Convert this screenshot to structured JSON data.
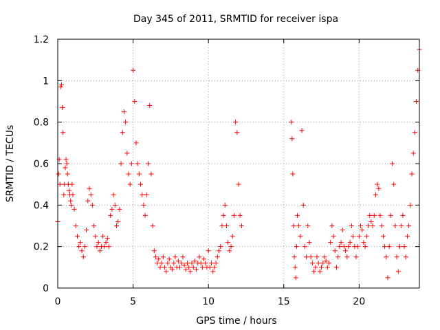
{
  "chart_data": {
    "type": "scatter",
    "title": "Day 345 of 2011, SRMTID for receiver ispa",
    "xlabel": "GPS time / hours",
    "ylabel": "SRMTID / TECUs",
    "xlim": [
      0,
      24
    ],
    "ylim": [
      0,
      1.2
    ],
    "xticks": [
      0,
      5,
      10,
      15,
      20
    ],
    "xtick_labels": [
      "0",
      "5",
      "10",
      "15",
      "20"
    ],
    "yticks": [
      0,
      0.2,
      0.4,
      0.6,
      0.8,
      1.0,
      1.2
    ],
    "ytick_labels": [
      "0",
      "0.2",
      "0.4",
      "0.6",
      "0.8",
      "1",
      "1.2"
    ],
    "grid": true,
    "marker": "+",
    "series_color": "#ff0000",
    "series": [
      {
        "name": "SRMTID",
        "points": [
          [
            0.0,
            0.32
          ],
          [
            0.05,
            0.55
          ],
          [
            0.1,
            0.62
          ],
          [
            0.15,
            0.5
          ],
          [
            0.2,
            0.97
          ],
          [
            0.25,
            0.98
          ],
          [
            0.3,
            0.87
          ],
          [
            0.35,
            0.75
          ],
          [
            0.4,
            0.45
          ],
          [
            0.45,
            0.5
          ],
          [
            0.5,
            0.58
          ],
          [
            0.55,
            0.62
          ],
          [
            0.6,
            0.6
          ],
          [
            0.65,
            0.55
          ],
          [
            0.7,
            0.5
          ],
          [
            0.75,
            0.47
          ],
          [
            0.8,
            0.45
          ],
          [
            0.85,
            0.42
          ],
          [
            0.9,
            0.4
          ],
          [
            0.95,
            0.5
          ],
          [
            1.0,
            0.45
          ],
          [
            1.1,
            0.38
          ],
          [
            1.2,
            0.3
          ],
          [
            1.3,
            0.25
          ],
          [
            1.4,
            0.2
          ],
          [
            1.5,
            0.22
          ],
          [
            1.6,
            0.18
          ],
          [
            1.7,
            0.15
          ],
          [
            1.8,
            0.2
          ],
          [
            1.9,
            0.28
          ],
          [
            2.0,
            0.42
          ],
          [
            2.1,
            0.48
          ],
          [
            2.2,
            0.45
          ],
          [
            2.3,
            0.4
          ],
          [
            2.4,
            0.3
          ],
          [
            2.5,
            0.25
          ],
          [
            2.6,
            0.2
          ],
          [
            2.7,
            0.22
          ],
          [
            2.8,
            0.18
          ],
          [
            2.9,
            0.2
          ],
          [
            3.0,
            0.25
          ],
          [
            3.1,
            0.2
          ],
          [
            3.2,
            0.22
          ],
          [
            3.3,
            0.24
          ],
          [
            3.4,
            0.2
          ],
          [
            3.5,
            0.35
          ],
          [
            3.6,
            0.38
          ],
          [
            3.7,
            0.45
          ],
          [
            3.8,
            0.4
          ],
          [
            3.9,
            0.3
          ],
          [
            4.0,
            0.32
          ],
          [
            4.1,
            0.38
          ],
          [
            4.2,
            0.6
          ],
          [
            4.3,
            0.75
          ],
          [
            4.4,
            0.85
          ],
          [
            4.5,
            0.8
          ],
          [
            4.6,
            0.65
          ],
          [
            4.7,
            0.55
          ],
          [
            4.8,
            0.5
          ],
          [
            4.9,
            0.6
          ],
          [
            5.0,
            1.05
          ],
          [
            5.1,
            0.9
          ],
          [
            5.2,
            0.7
          ],
          [
            5.3,
            0.6
          ],
          [
            5.4,
            0.55
          ],
          [
            5.5,
            0.5
          ],
          [
            5.6,
            0.45
          ],
          [
            5.7,
            0.4
          ],
          [
            5.8,
            0.35
          ],
          [
            5.9,
            0.45
          ],
          [
            6.0,
            0.6
          ],
          [
            6.1,
            0.88
          ],
          [
            6.2,
            0.55
          ],
          [
            6.3,
            0.3
          ],
          [
            6.4,
            0.18
          ],
          [
            6.5,
            0.15
          ],
          [
            6.6,
            0.12
          ],
          [
            6.7,
            0.14
          ],
          [
            6.8,
            0.1
          ],
          [
            6.9,
            0.12
          ],
          [
            7.0,
            0.15
          ],
          [
            7.1,
            0.1
          ],
          [
            7.2,
            0.08
          ],
          [
            7.3,
            0.12
          ],
          [
            7.4,
            0.14
          ],
          [
            7.5,
            0.1
          ],
          [
            7.6,
            0.09
          ],
          [
            7.7,
            0.12
          ],
          [
            7.8,
            0.15
          ],
          [
            7.9,
            0.1
          ],
          [
            8.0,
            0.13
          ],
          [
            8.1,
            0.1
          ],
          [
            8.2,
            0.12
          ],
          [
            8.3,
            0.15
          ],
          [
            8.4,
            0.11
          ],
          [
            8.5,
            0.09
          ],
          [
            8.6,
            0.12
          ],
          [
            8.7,
            0.1
          ],
          [
            8.8,
            0.08
          ],
          [
            8.9,
            0.12
          ],
          [
            9.0,
            0.1
          ],
          [
            9.1,
            0.13
          ],
          [
            9.2,
            0.09
          ],
          [
            9.3,
            0.12
          ],
          [
            9.4,
            0.15
          ],
          [
            9.5,
            0.12
          ],
          [
            9.6,
            0.1
          ],
          [
            9.7,
            0.14
          ],
          [
            9.8,
            0.12
          ],
          [
            9.9,
            0.1
          ],
          [
            10.0,
            0.18
          ],
          [
            10.1,
            0.1
          ],
          [
            10.2,
            0.12
          ],
          [
            10.3,
            0.08
          ],
          [
            10.4,
            0.1
          ],
          [
            10.5,
            0.12
          ],
          [
            10.6,
            0.15
          ],
          [
            10.7,
            0.18
          ],
          [
            10.8,
            0.2
          ],
          [
            10.9,
            0.3
          ],
          [
            11.0,
            0.35
          ],
          [
            11.1,
            0.4
          ],
          [
            11.2,
            0.3
          ],
          [
            11.3,
            0.22
          ],
          [
            11.4,
            0.18
          ],
          [
            11.5,
            0.2
          ],
          [
            11.6,
            0.25
          ],
          [
            11.7,
            0.35
          ],
          [
            11.8,
            0.8
          ],
          [
            11.9,
            0.75
          ],
          [
            12.0,
            0.5
          ],
          [
            12.1,
            0.35
          ],
          [
            12.2,
            0.3
          ],
          [
            15.5,
            0.8
          ],
          [
            15.55,
            0.72
          ],
          [
            15.6,
            0.55
          ],
          [
            15.65,
            0.3
          ],
          [
            15.7,
            0.15
          ],
          [
            15.75,
            0.1
          ],
          [
            15.8,
            0.05
          ],
          [
            15.85,
            0.2
          ],
          [
            15.9,
            0.35
          ],
          [
            16.0,
            0.3
          ],
          [
            16.1,
            0.25
          ],
          [
            16.2,
            0.76
          ],
          [
            16.3,
            0.4
          ],
          [
            16.4,
            0.2
          ],
          [
            16.5,
            0.15
          ],
          [
            16.6,
            0.3
          ],
          [
            16.7,
            0.22
          ],
          [
            16.8,
            0.15
          ],
          [
            16.9,
            0.12
          ],
          [
            17.0,
            0.08
          ],
          [
            17.1,
            0.1
          ],
          [
            17.2,
            0.15
          ],
          [
            17.3,
            0.12
          ],
          [
            17.4,
            0.08
          ],
          [
            17.5,
            0.1
          ],
          [
            17.6,
            0.12
          ],
          [
            17.7,
            0.15
          ],
          [
            17.8,
            0.13
          ],
          [
            17.9,
            0.1
          ],
          [
            18.0,
            0.12
          ],
          [
            18.1,
            0.22
          ],
          [
            18.2,
            0.3
          ],
          [
            18.3,
            0.25
          ],
          [
            18.4,
            0.18
          ],
          [
            18.5,
            0.1
          ],
          [
            18.6,
            0.15
          ],
          [
            18.7,
            0.2
          ],
          [
            18.8,
            0.22
          ],
          [
            18.9,
            0.28
          ],
          [
            19.0,
            0.2
          ],
          [
            19.1,
            0.18
          ],
          [
            19.2,
            0.15
          ],
          [
            19.3,
            0.2
          ],
          [
            19.4,
            0.22
          ],
          [
            19.5,
            0.3
          ],
          [
            19.6,
            0.25
          ],
          [
            19.7,
            0.2
          ],
          [
            19.8,
            0.15
          ],
          [
            19.9,
            0.2
          ],
          [
            20.0,
            0.25
          ],
          [
            20.1,
            0.3
          ],
          [
            20.2,
            0.28
          ],
          [
            20.3,
            0.22
          ],
          [
            20.4,
            0.2
          ],
          [
            20.5,
            0.25
          ],
          [
            20.6,
            0.3
          ],
          [
            20.7,
            0.35
          ],
          [
            20.8,
            0.32
          ],
          [
            20.9,
            0.3
          ],
          [
            21.0,
            0.35
          ],
          [
            21.1,
            0.45
          ],
          [
            21.2,
            0.5
          ],
          [
            21.3,
            0.48
          ],
          [
            21.4,
            0.35
          ],
          [
            21.5,
            0.3
          ],
          [
            21.6,
            0.25
          ],
          [
            21.7,
            0.2
          ],
          [
            21.8,
            0.15
          ],
          [
            21.9,
            0.05
          ],
          [
            22.0,
            0.2
          ],
          [
            22.1,
            0.35
          ],
          [
            22.2,
            0.6
          ],
          [
            22.3,
            0.5
          ],
          [
            22.4,
            0.3
          ],
          [
            22.5,
            0.15
          ],
          [
            22.6,
            0.08
          ],
          [
            22.7,
            0.2
          ],
          [
            22.8,
            0.3
          ],
          [
            22.9,
            0.35
          ],
          [
            23.0,
            0.2
          ],
          [
            23.1,
            0.15
          ],
          [
            23.2,
            0.25
          ],
          [
            23.3,
            0.3
          ],
          [
            23.4,
            0.4
          ],
          [
            23.5,
            0.55
          ],
          [
            23.6,
            0.65
          ],
          [
            23.7,
            0.75
          ],
          [
            23.8,
            0.9
          ],
          [
            23.9,
            1.05
          ],
          [
            24.0,
            1.15
          ]
        ]
      }
    ]
  }
}
